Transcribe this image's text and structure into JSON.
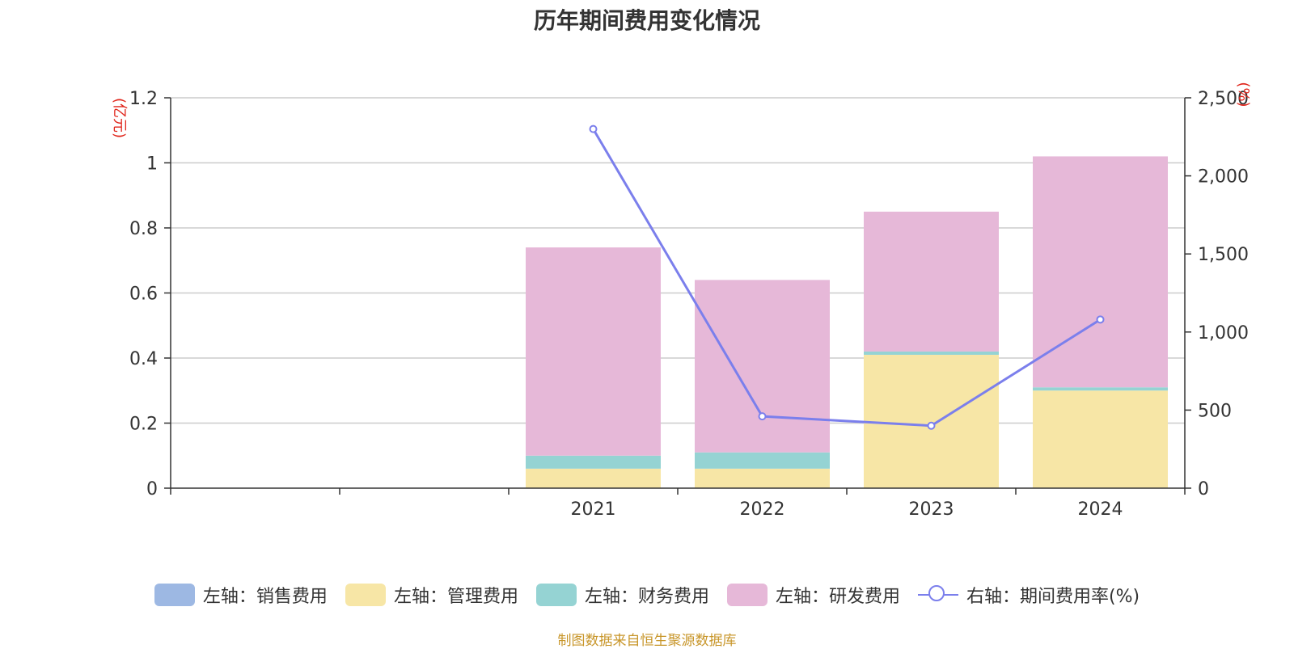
{
  "title": "历年期间费用变化情况",
  "source_text": "制图数据来自恒生聚源数据库",
  "y_left_unit": "(亿元)",
  "y_right_unit": "(%)",
  "legend": [
    {
      "label": "左轴：销售费用",
      "color": "#9db8e3",
      "kind": "bar"
    },
    {
      "label": "左轴：管理费用",
      "color": "#f7e6a6",
      "kind": "bar"
    },
    {
      "label": "左轴：财务费用",
      "color": "#95d3d3",
      "kind": "bar"
    },
    {
      "label": "左轴：研发费用",
      "color": "#e6b8d8",
      "kind": "bar"
    },
    {
      "label": "右轴：期间费用率(%)",
      "color": "#7b7fec",
      "kind": "line"
    }
  ],
  "chart_data": {
    "type": "bar",
    "stacked": true,
    "title": "历年期间费用变化情况",
    "categories": [
      "",
      "",
      "2021",
      "2022",
      "2023",
      "2024"
    ],
    "series": [
      {
        "name": "左轴：销售费用",
        "axis": "left",
        "color": "#9db8e3",
        "values": [
          null,
          null,
          0,
          0,
          0,
          0
        ]
      },
      {
        "name": "左轴：管理费用",
        "axis": "left",
        "color": "#f7e6a6",
        "values": [
          null,
          null,
          0.06,
          0.06,
          0.41,
          0.3
        ]
      },
      {
        "name": "左轴：财务费用",
        "axis": "left",
        "color": "#95d3d3",
        "values": [
          null,
          null,
          0.04,
          0.05,
          0.01,
          0.01
        ]
      },
      {
        "name": "左轴：研发费用",
        "axis": "left",
        "color": "#e6b8d8",
        "values": [
          null,
          null,
          0.64,
          0.53,
          0.43,
          0.71
        ]
      },
      {
        "name": "右轴：期间费用率(%)",
        "axis": "right",
        "type": "line",
        "color": "#7b7fec",
        "values": [
          null,
          null,
          2300,
          460,
          400,
          1080
        ]
      }
    ],
    "y_left": {
      "label": "(亿元)",
      "min": 0,
      "max": 1.2,
      "ticks": [
        "0",
        "0.2",
        "0.4",
        "0.6",
        "0.8",
        "1",
        "1.2"
      ],
      "tick_values": [
        0,
        0.2,
        0.4,
        0.6,
        0.8,
        1,
        1.2
      ]
    },
    "y_right": {
      "label": "(%)",
      "min": 0,
      "max": 2500,
      "ticks": [
        "0",
        "500",
        "1,000",
        "1,500",
        "2,000",
        "2,500"
      ],
      "tick_values": [
        0,
        500,
        1000,
        1500,
        2000,
        2500
      ]
    },
    "grid": true,
    "legend_position": "bottom"
  }
}
